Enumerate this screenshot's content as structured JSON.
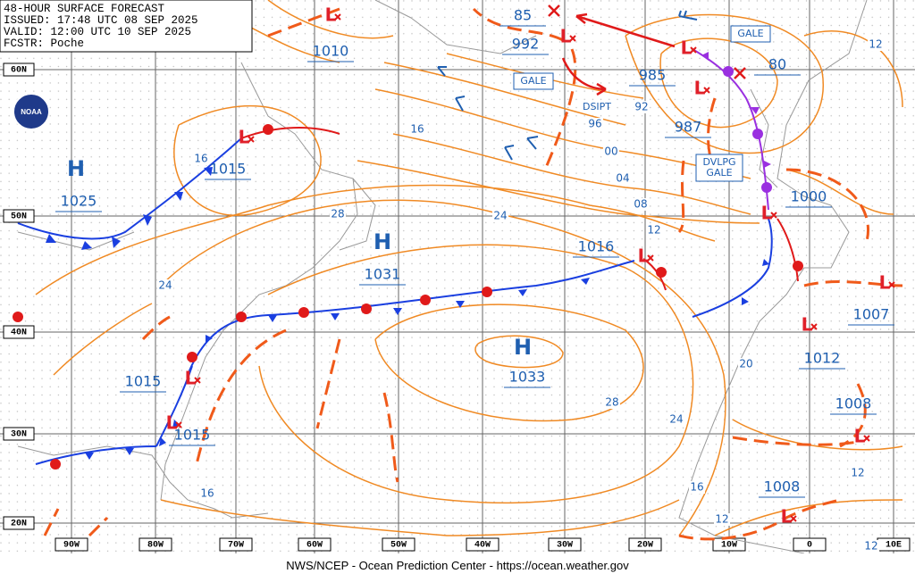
{
  "header": {
    "lines": [
      "48-HOUR SURFACE FORECAST",
      "ISSUED: 17:48 UTC 08 SEP 2025",
      "VALID:  12:00 UTC 10 SEP 2025",
      "FCSTR:  Poche"
    ]
  },
  "logo": "NOAA",
  "footer": "NWS/NCEP - Ocean Prediction Center - https://ocean.weather.gov",
  "latitude_labels": [
    "60N",
    "50N",
    "40N",
    "30N",
    "20N"
  ],
  "longitude_labels": [
    "90W",
    "80W",
    "70W",
    "60W",
    "50W",
    "40W",
    "30W",
    "20W",
    "10W",
    "0",
    "10E"
  ],
  "highs": [
    {
      "symbol": "H",
      "value": "1025"
    },
    {
      "symbol": "H",
      "value": "1031"
    },
    {
      "symbol": "H",
      "value": "1033"
    }
  ],
  "lows": [
    "L",
    "L",
    "L",
    "L",
    "L",
    "L",
    "L",
    "L",
    "L",
    "L",
    "L",
    "L",
    "L"
  ],
  "pressure_labels": [
    "1010",
    "1015",
    "1015",
    "1015",
    "992",
    "85",
    "985",
    "987",
    "80",
    "1000",
    "1016",
    "1007",
    "1012",
    "1008",
    "1008"
  ],
  "isobar_labels": [
    "16",
    "16",
    "28",
    "24",
    "24",
    "28",
    "24",
    "20",
    "16",
    "12",
    "12",
    "12",
    "12",
    "16",
    "92",
    "96",
    "00",
    "04",
    "08",
    "12"
  ],
  "annotations": {
    "dissipating": "DSIPT",
    "gale_boxes": [
      "GALE",
      "GALE"
    ],
    "developing_gale": [
      "DVLPG",
      "GALE"
    ]
  }
}
